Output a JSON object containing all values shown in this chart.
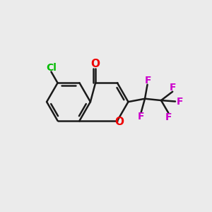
{
  "background_color": "#ebebeb",
  "bond_color": "#1a1a1a",
  "bond_width": 1.8,
  "atom_colors": {
    "O_carbonyl": "#ee0000",
    "O_ring": "#ee0000",
    "Cl": "#00bb00",
    "F": "#cc00cc"
  },
  "font_size_atoms": 11,
  "font_size_F": 10,
  "font_size_Cl": 10
}
